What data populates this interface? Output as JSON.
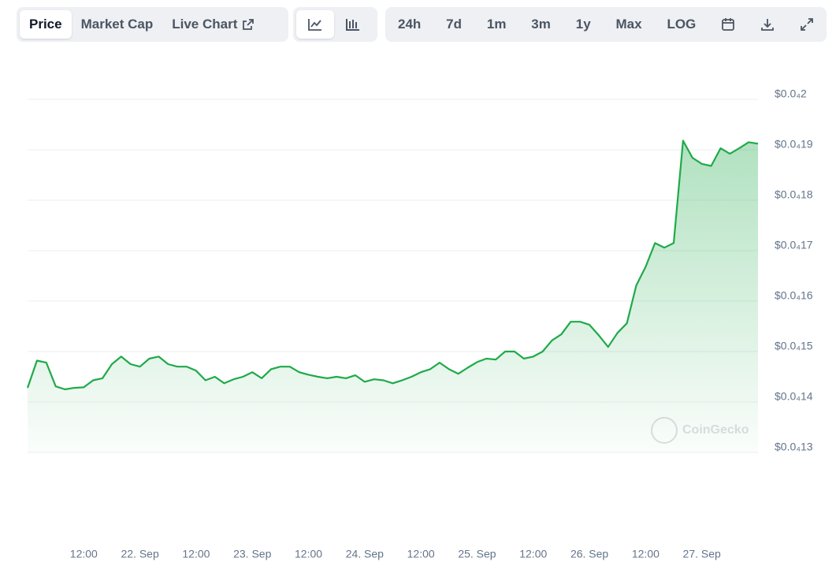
{
  "toolbar": {
    "tabs": [
      "Price",
      "Market Cap",
      "Live Chart"
    ],
    "ranges": [
      "24h",
      "7d",
      "1m",
      "3m",
      "1y",
      "Max",
      "LOG"
    ]
  },
  "chart_data": {
    "type": "area",
    "color": "#1faa4a",
    "watermark": "CoinGecko",
    "grid": true,
    "categories": [
      null,
      null,
      null,
      null,
      null,
      null,
      "12:00",
      null,
      null,
      null,
      null,
      null,
      "22. Sep",
      null,
      null,
      null,
      null,
      null,
      "12:00",
      null,
      null,
      null,
      null,
      null,
      "23. Sep",
      null,
      null,
      null,
      null,
      null,
      "12:00",
      null,
      null,
      null,
      null,
      null,
      "24. Sep",
      null,
      null,
      null,
      null,
      null,
      "12:00",
      null,
      null,
      null,
      null,
      null,
      "25. Sep",
      null,
      null,
      null,
      null,
      null,
      "12:00",
      null,
      null,
      null,
      null,
      null,
      "26. Sep",
      null,
      null,
      null,
      null,
      null,
      "12:00",
      null,
      null,
      null,
      null,
      null,
      "27. Sep",
      null,
      null,
      null,
      null,
      null,
      null
    ],
    "values": [
      1.428e-05,
      1.482e-05,
      1.478e-05,
      1.431e-05,
      1.425e-05,
      1.428e-05,
      1.429e-05,
      1.443e-05,
      1.447e-05,
      1.475e-05,
      1.49e-05,
      1.475e-05,
      1.47e-05,
      1.486e-05,
      1.49e-05,
      1.475e-05,
      1.47e-05,
      1.47e-05,
      1.462e-05,
      1.443e-05,
      1.45e-05,
      1.437e-05,
      1.445e-05,
      1.45e-05,
      1.459e-05,
      1.447e-05,
      1.465e-05,
      1.47e-05,
      1.47e-05,
      1.459e-05,
      1.454e-05,
      1.45e-05,
      1.447e-05,
      1.45e-05,
      1.447e-05,
      1.453e-05,
      1.44e-05,
      1.445e-05,
      1.443e-05,
      1.437e-05,
      1.443e-05,
      1.45e-05,
      1.459e-05,
      1.465e-05,
      1.478e-05,
      1.465e-05,
      1.456e-05,
      1.468e-05,
      1.479e-05,
      1.486e-05,
      1.484e-05,
      1.5e-05,
      1.5e-05,
      1.486e-05,
      1.49e-05,
      1.5e-05,
      1.522e-05,
      1.534e-05,
      1.559e-05,
      1.559e-05,
      1.553e-05,
      1.532e-05,
      1.509e-05,
      1.537e-05,
      1.556e-05,
      1.631e-05,
      1.668e-05,
      1.715e-05,
      1.706e-05,
      1.715e-05,
      1.918e-05,
      1.884e-05,
      1.872e-05,
      1.868e-05,
      1.903e-05,
      1.892e-05,
      1.903e-05,
      1.915e-05,
      1.912e-05
    ],
    "ylim": [
      1.3e-05,
      2.05e-05
    ],
    "yticks": [
      {
        "value": 1.3e-05,
        "label": "$0.0₄13"
      },
      {
        "value": 1.4e-05,
        "label": "$0.0₄14"
      },
      {
        "value": 1.5e-05,
        "label": "$0.0₄15"
      },
      {
        "value": 1.6e-05,
        "label": "$0.0₄16"
      },
      {
        "value": 1.7e-05,
        "label": "$0.0₄17"
      },
      {
        "value": 1.8e-05,
        "label": "$0.0₄18"
      },
      {
        "value": 1.9e-05,
        "label": "$0.0₄19"
      },
      {
        "value": 2e-05,
        "label": "$0.0₄2"
      }
    ]
  }
}
